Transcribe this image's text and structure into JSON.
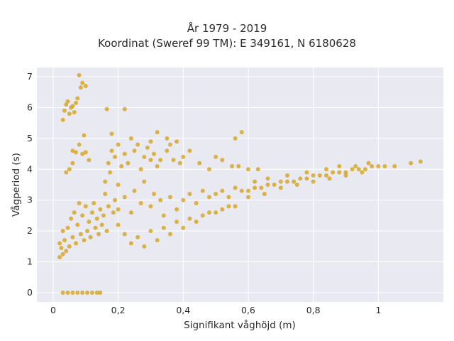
{
  "chart_data": {
    "type": "scatter",
    "title_line1": "År 1979 - 2019",
    "title_line2": "Koordinat (Sweref 99 TM): E 349161, N 6180628",
    "xlabel": "Signifikant våghöjd (m)",
    "ylabel": "Vågperiod (s)",
    "xlim": [
      -0.05,
      1.2
    ],
    "ylim": [
      -0.3,
      7.3
    ],
    "xticks": [
      {
        "value": 0,
        "label": "0"
      },
      {
        "value": 0.2,
        "label": "0,2"
      },
      {
        "value": 0.4,
        "label": "0,4"
      },
      {
        "value": 0.6,
        "label": "0,6"
      },
      {
        "value": 0.8,
        "label": "0,8"
      },
      {
        "value": 1,
        "label": "1"
      }
    ],
    "yticks": [
      {
        "value": 0,
        "label": "0"
      },
      {
        "value": 1,
        "label": "1"
      },
      {
        "value": 2,
        "label": "2"
      },
      {
        "value": 3,
        "label": "3"
      },
      {
        "value": 4,
        "label": "4"
      },
      {
        "value": 5,
        "label": "5"
      },
      {
        "value": 6,
        "label": "6"
      },
      {
        "value": 7,
        "label": "7"
      }
    ],
    "grid": true,
    "marker_color": "#d4a31c",
    "background_color": "#e9e9f1",
    "points": [
      [
        0.03,
        0
      ],
      [
        0.045,
        0
      ],
      [
        0.06,
        0
      ],
      [
        0.075,
        0
      ],
      [
        0.09,
        0
      ],
      [
        0.105,
        0
      ],
      [
        0.12,
        0
      ],
      [
        0.135,
        0
      ],
      [
        0.145,
        0
      ],
      [
        0.02,
        1.15
      ],
      [
        0.025,
        1.45
      ],
      [
        0.03,
        1.25
      ],
      [
        0.035,
        1.7
      ],
      [
        0.04,
        1.35
      ],
      [
        0.045,
        2.1
      ],
      [
        0.05,
        1.5
      ],
      [
        0.055,
        2.4
      ],
      [
        0.06,
        1.8
      ],
      [
        0.065,
        2.6
      ],
      [
        0.07,
        1.6
      ],
      [
        0.075,
        2.2
      ],
      [
        0.08,
        2.9
      ],
      [
        0.085,
        1.9
      ],
      [
        0.09,
        2.5
      ],
      [
        0.095,
        1.7
      ],
      [
        0.1,
        2.8
      ],
      [
        0.105,
        2.0
      ],
      [
        0.11,
        2.3
      ],
      [
        0.115,
        1.8
      ],
      [
        0.12,
        2.6
      ],
      [
        0.125,
        2.9
      ],
      [
        0.13,
        2.1
      ],
      [
        0.135,
        2.4
      ],
      [
        0.14,
        1.9
      ],
      [
        0.145,
        2.7
      ],
      [
        0.15,
        2.2
      ],
      [
        0.155,
        2.5
      ],
      [
        0.16,
        3.2
      ],
      [
        0.165,
        2.0
      ],
      [
        0.17,
        2.8
      ],
      [
        0.16,
        3.6
      ],
      [
        0.17,
        4.2
      ],
      [
        0.175,
        3.9
      ],
      [
        0.18,
        4.6
      ],
      [
        0.19,
        4.4
      ],
      [
        0.2,
        4.8
      ],
      [
        0.21,
        4.1
      ],
      [
        0.22,
        4.5
      ],
      [
        0.2,
        3.5
      ],
      [
        0.19,
        3.0
      ],
      [
        0.185,
        2.6
      ],
      [
        0.2,
        2.2
      ],
      [
        0.2,
        2.7
      ],
      [
        0.22,
        3.1
      ],
      [
        0.24,
        2.6
      ],
      [
        0.25,
        3.3
      ],
      [
        0.27,
        2.9
      ],
      [
        0.28,
        3.6
      ],
      [
        0.3,
        2.8
      ],
      [
        0.31,
        3.2
      ],
      [
        0.33,
        3.0
      ],
      [
        0.34,
        2.5
      ],
      [
        0.36,
        3.1
      ],
      [
        0.38,
        2.7
      ],
      [
        0.4,
        3.0
      ],
      [
        0.42,
        3.2
      ],
      [
        0.44,
        2.9
      ],
      [
        0.46,
        3.3
      ],
      [
        0.48,
        3.1
      ],
      [
        0.5,
        3.2
      ],
      [
        0.52,
        3.3
      ],
      [
        0.54,
        3.1
      ],
      [
        0.56,
        3.4
      ],
      [
        0.23,
        4.2
      ],
      [
        0.25,
        4.6
      ],
      [
        0.27,
        4.0
      ],
      [
        0.28,
        4.4
      ],
      [
        0.3,
        4.3
      ],
      [
        0.32,
        4.1
      ],
      [
        0.24,
        5.0
      ],
      [
        0.26,
        4.8
      ],
      [
        0.29,
        4.7
      ],
      [
        0.31,
        4.5
      ],
      [
        0.33,
        4.3
      ],
      [
        0.35,
        4.6
      ],
      [
        0.37,
        4.3
      ],
      [
        0.39,
        4.2
      ],
      [
        0.22,
        1.9
      ],
      [
        0.24,
        1.6
      ],
      [
        0.26,
        1.8
      ],
      [
        0.28,
        1.5
      ],
      [
        0.3,
        2.0
      ],
      [
        0.32,
        1.7
      ],
      [
        0.34,
        2.1
      ],
      [
        0.36,
        1.9
      ],
      [
        0.38,
        2.3
      ],
      [
        0.4,
        2.1
      ],
      [
        0.42,
        2.4
      ],
      [
        0.44,
        2.3
      ],
      [
        0.46,
        2.5
      ],
      [
        0.48,
        2.6
      ],
      [
        0.5,
        2.6
      ],
      [
        0.52,
        2.7
      ],
      [
        0.54,
        2.8
      ],
      [
        0.56,
        2.8
      ],
      [
        0.58,
        3.3
      ],
      [
        0.6,
        3.3
      ],
      [
        0.62,
        3.4
      ],
      [
        0.64,
        3.4
      ],
      [
        0.66,
        3.5
      ],
      [
        0.68,
        3.5
      ],
      [
        0.7,
        3.6
      ],
      [
        0.72,
        3.6
      ],
      [
        0.74,
        3.6
      ],
      [
        0.76,
        3.7
      ],
      [
        0.78,
        3.7
      ],
      [
        0.8,
        3.8
      ],
      [
        0.82,
        3.8
      ],
      [
        0.84,
        3.8
      ],
      [
        0.86,
        3.9
      ],
      [
        0.88,
        3.9
      ],
      [
        0.9,
        3.9
      ],
      [
        0.92,
        4.0
      ],
      [
        0.94,
        4.0
      ],
      [
        0.96,
        4.0
      ],
      [
        0.98,
        4.1
      ],
      [
        1.0,
        4.1
      ],
      [
        1.02,
        4.1
      ],
      [
        1.05,
        4.1
      ],
      [
        1.1,
        4.2
      ],
      [
        1.13,
        4.25
      ],
      [
        0.6,
        3.1
      ],
      [
        0.65,
        3.2
      ],
      [
        0.7,
        3.4
      ],
      [
        0.75,
        3.5
      ],
      [
        0.8,
        3.6
      ],
      [
        0.85,
        3.7
      ],
      [
        0.9,
        3.8
      ],
      [
        0.95,
        3.9
      ],
      [
        0.62,
        3.6
      ],
      [
        0.66,
        3.7
      ],
      [
        0.72,
        3.8
      ],
      [
        0.78,
        3.9
      ],
      [
        0.84,
        4.0
      ],
      [
        0.88,
        4.1
      ],
      [
        0.93,
        4.1
      ],
      [
        0.97,
        4.2
      ],
      [
        0.3,
        4.9
      ],
      [
        0.32,
        5.2
      ],
      [
        0.35,
        5.0
      ],
      [
        0.36,
        4.8
      ],
      [
        0.38,
        4.9
      ],
      [
        0.4,
        4.4
      ],
      [
        0.42,
        4.6
      ],
      [
        0.45,
        4.2
      ],
      [
        0.48,
        4.0
      ],
      [
        0.5,
        4.4
      ],
      [
        0.52,
        4.3
      ],
      [
        0.55,
        4.1
      ],
      [
        0.57,
        4.1
      ],
      [
        0.6,
        4.0
      ],
      [
        0.63,
        4.0
      ],
      [
        0.56,
        5.0
      ],
      [
        0.58,
        5.2
      ],
      [
        0.03,
        5.6
      ],
      [
        0.035,
        5.9
      ],
      [
        0.04,
        6.1
      ],
      [
        0.045,
        6.2
      ],
      [
        0.05,
        5.8
      ],
      [
        0.055,
        6.0
      ],
      [
        0.06,
        6.05
      ],
      [
        0.065,
        5.85
      ],
      [
        0.07,
        6.15
      ],
      [
        0.075,
        6.3
      ],
      [
        0.08,
        7.05
      ],
      [
        0.09,
        6.8
      ],
      [
        0.1,
        6.7
      ],
      [
        0.085,
        6.65
      ],
      [
        0.095,
        5.1
      ],
      [
        0.18,
        5.15
      ],
      [
        0.165,
        5.95
      ],
      [
        0.22,
        5.95
      ],
      [
        0.06,
        4.6
      ],
      [
        0.07,
        4.55
      ],
      [
        0.08,
        4.8
      ],
      [
        0.09,
        4.5
      ],
      [
        0.1,
        4.55
      ],
      [
        0.11,
        4.3
      ],
      [
        0.04,
        3.9
      ],
      [
        0.05,
        4.0
      ],
      [
        0.06,
        4.2
      ],
      [
        0.02,
        1.6
      ],
      [
        0.03,
        2.0
      ]
    ]
  }
}
